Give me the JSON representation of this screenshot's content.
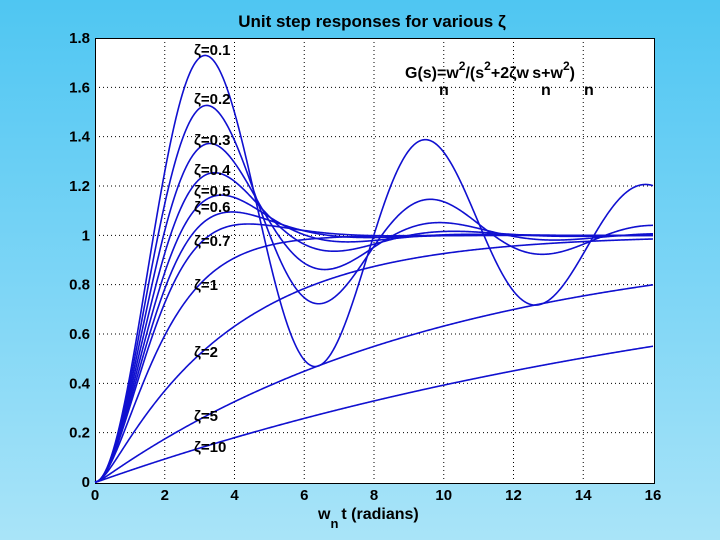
{
  "chart_data": {
    "type": "line",
    "title": "Unit step responses for various ζ",
    "xlabel_main": "w",
    "xlabel_sub": "n",
    "xlabel_rest": "t (radians)",
    "annotation": {
      "p1": "G(s)=w",
      "p2": "2",
      "p3": "/(s",
      "p4": "2",
      "p5": "+2ζw",
      "p6": "s+w",
      "p7": "2",
      "p8": ")",
      "sub1": "n",
      "sub2": "n",
      "sub3": "n"
    },
    "xlim": [
      0,
      16
    ],
    "ylim": [
      0,
      1.8
    ],
    "xticks": [
      0,
      2,
      4,
      6,
      8,
      10,
      12,
      14,
      16
    ],
    "yticks": [
      0,
      0.2,
      0.4,
      0.6,
      0.8,
      1,
      1.2,
      1.4,
      1.6,
      1.8
    ],
    "xtick_labels": [
      "0",
      "2",
      "4",
      "6",
      "8",
      "10",
      "12",
      "14",
      "16"
    ],
    "ytick_labels": [
      "0",
      "0.2",
      "0.4",
      "0.6",
      "0.8",
      "1",
      "1.2",
      "1.4",
      "1.6",
      "1.8"
    ],
    "grid": true,
    "line_color": "#1010d0",
    "series": [
      {
        "name": "ζ=0.1",
        "zeta": 0.1,
        "label": "ζ=0.1"
      },
      {
        "name": "ζ=0.2",
        "zeta": 0.2,
        "label": "ζ=0.2"
      },
      {
        "name": "ζ=0.3",
        "zeta": 0.3,
        "label": "ζ=0.3"
      },
      {
        "name": "ζ=0.4",
        "zeta": 0.4,
        "label": "ζ=0.4"
      },
      {
        "name": "ζ=0.5",
        "zeta": 0.5,
        "label": "ζ=0.5"
      },
      {
        "name": "ζ=0.6",
        "zeta": 0.6,
        "label": "ζ=0.6"
      },
      {
        "name": "ζ=0.7",
        "zeta": 0.7,
        "label": "ζ=0.7"
      },
      {
        "name": "ζ=1",
        "zeta": 1,
        "label": "ζ=1"
      },
      {
        "name": "ζ=2",
        "zeta": 2,
        "label": "ζ=2"
      },
      {
        "name": "ζ=5",
        "zeta": 5,
        "label": "ζ=5"
      },
      {
        "name": "ζ=10",
        "zeta": 10,
        "label": "ζ=10"
      }
    ]
  }
}
